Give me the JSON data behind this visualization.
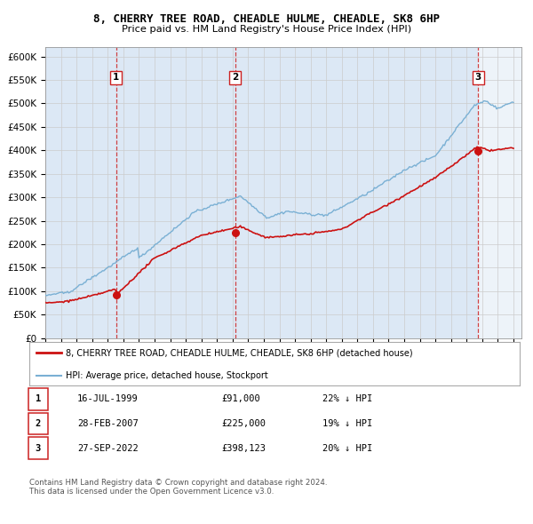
{
  "title": "8, CHERRY TREE ROAD, CHEADLE HULME, CHEADLE, SK8 6HP",
  "subtitle": "Price paid vs. HM Land Registry's House Price Index (HPI)",
  "xlim": [
    1995.0,
    2025.5
  ],
  "ylim": [
    0,
    620000
  ],
  "yticks": [
    0,
    50000,
    100000,
    150000,
    200000,
    250000,
    300000,
    350000,
    400000,
    450000,
    500000,
    550000,
    600000
  ],
  "ytick_labels": [
    "£0",
    "£50K",
    "£100K",
    "£150K",
    "£200K",
    "£250K",
    "£300K",
    "£350K",
    "£400K",
    "£450K",
    "£500K",
    "£550K",
    "£600K"
  ],
  "xtick_years": [
    1995,
    1996,
    1997,
    1998,
    1999,
    2000,
    2001,
    2002,
    2003,
    2004,
    2005,
    2006,
    2007,
    2008,
    2009,
    2010,
    2011,
    2012,
    2013,
    2014,
    2015,
    2016,
    2017,
    2018,
    2019,
    2020,
    2021,
    2022,
    2023,
    2024,
    2025
  ],
  "sale_dates": [
    1999.54,
    2007.16,
    2022.74
  ],
  "sale_prices": [
    91000,
    225000,
    398123
  ],
  "sale_labels": [
    "1",
    "2",
    "3"
  ],
  "vline_color": "#cc2222",
  "shade_color": "#dce8f5",
  "red_line_color": "#cc1111",
  "blue_line_color": "#7ab0d4",
  "dot_color": "#cc1111",
  "legend_label_red": "8, CHERRY TREE ROAD, CHEADLE HULME, CHEADLE, SK8 6HP (detached house)",
  "legend_label_blue": "HPI: Average price, detached house, Stockport",
  "table_rows": [
    [
      "1",
      "16-JUL-1999",
      "£91,000",
      "22% ↓ HPI"
    ],
    [
      "2",
      "28-FEB-2007",
      "£225,000",
      "19% ↓ HPI"
    ],
    [
      "3",
      "27-SEP-2022",
      "£398,123",
      "20% ↓ HPI"
    ]
  ],
  "footnote1": "Contains HM Land Registry data © Crown copyright and database right 2024.",
  "footnote2": "This data is licensed under the Open Government Licence v3.0.",
  "background_color": "#ffffff",
  "plot_bg_color": "#ffffff",
  "grid_color": "#cccccc"
}
